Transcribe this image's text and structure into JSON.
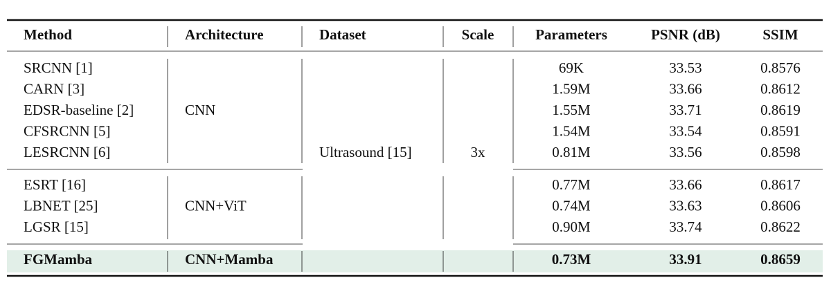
{
  "table": {
    "header": [
      "Method",
      "Architecture",
      "Dataset",
      "Scale",
      "Parameters",
      "PSNR (dB)",
      "SSIM"
    ],
    "dataset": "Ultrasound [15]",
    "scale": "3x",
    "groups": [
      {
        "architecture": "CNN",
        "rows": [
          [
            "SRCNN [1]",
            "69K",
            "33.53",
            "0.8576"
          ],
          [
            "CARN [3]",
            "1.59M",
            "33.66",
            "0.8612"
          ],
          [
            "EDSR-baseline [2]",
            "1.55M",
            "33.71",
            "0.8619"
          ],
          [
            "CFSRCNN [5]",
            "1.54M",
            "33.54",
            "0.8591"
          ],
          [
            "LESRCNN [6]",
            "0.81M",
            "33.56",
            "0.8598"
          ]
        ]
      },
      {
        "architecture": "CNN+ViT",
        "rows": [
          [
            "ESRT [16]",
            "0.77M",
            "33.66",
            "0.8617"
          ],
          [
            "LBNET [25]",
            "0.74M",
            "33.63",
            "0.8606"
          ],
          [
            "LGSR [15]",
            "0.90M",
            "33.74",
            "0.8622"
          ]
        ]
      },
      {
        "architecture": "CNN+Mamba",
        "rows": [
          [
            "FGMamba",
            "0.73M",
            "33.91",
            "0.8659"
          ]
        ]
      }
    ]
  }
}
